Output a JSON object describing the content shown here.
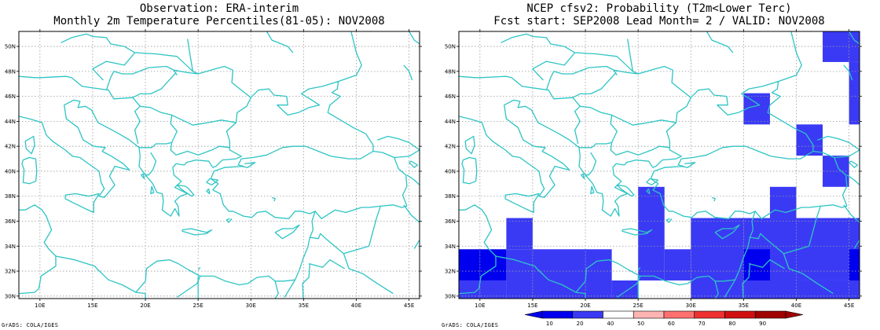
{
  "left_panel": {
    "title_line1": "Observation: ERA-interim",
    "title_line2": "Monthly 2m Temperature Percentiles(81-05): NOV2008"
  },
  "right_panel": {
    "title_line1": "NCEP cfsv2: Probability (T2m<Lower Terc)",
    "title_line2": "Fcst start: SEP2008  Lead Month= 2 / VALID: NOV2008"
  },
  "credit": "GrADS: COLA/IGES",
  "axes": {
    "lon_labels": [
      "10E",
      "15E",
      "20E",
      "25E",
      "30E",
      "35E",
      "40E",
      "45E"
    ],
    "lat_labels": [
      "30N",
      "32N",
      "34N",
      "36N",
      "38N",
      "40N",
      "42N",
      "44N",
      "46N",
      "48N",
      "50N"
    ]
  },
  "colors": {
    "coast": "#2ec4c4",
    "grid": "#999999",
    "prob_10": "#0000ee",
    "prob_20": "#3a3af5"
  },
  "chart_data": {
    "type": "heatmap",
    "lon_range": [
      8,
      46
    ],
    "lat_range": [
      29.8,
      51.2
    ],
    "cell_size_deg": 2.5,
    "cells": [
      {
        "lon0": 7.5,
        "lon1": 10,
        "lat0": 31.25,
        "lat1": 33.75,
        "v": 10
      },
      {
        "lon0": 10,
        "lon1": 12.5,
        "lat0": 31.25,
        "lat1": 33.75,
        "v": 10
      },
      {
        "lon0": 7.5,
        "lon1": 10,
        "lat0": 28.75,
        "lat1": 31.25,
        "v": 20
      },
      {
        "lon0": 10,
        "lon1": 12.5,
        "lat0": 28.75,
        "lat1": 31.25,
        "v": 20
      },
      {
        "lon0": 12.5,
        "lon1": 15,
        "lat0": 28.75,
        "lat1": 33.75,
        "v": 20
      },
      {
        "lon0": 12.5,
        "lon1": 15,
        "lat0": 33.75,
        "lat1": 36.25,
        "v": 20
      },
      {
        "lon0": 15,
        "lon1": 20,
        "lat0": 28.75,
        "lat1": 33.75,
        "v": 20
      },
      {
        "lon0": 20,
        "lon1": 22.5,
        "lat0": 28.75,
        "lat1": 33.75,
        "v": 20
      },
      {
        "lon0": 22.5,
        "lon1": 25,
        "lat0": 28.75,
        "lat1": 31.25,
        "v": 20
      },
      {
        "lon0": 25,
        "lon1": 27.5,
        "lat0": 31.25,
        "lat1": 38.75,
        "v": 20
      },
      {
        "lon0": 27.5,
        "lon1": 30,
        "lat0": 31.25,
        "lat1": 33.75,
        "v": 20
      },
      {
        "lon0": 30,
        "lon1": 35,
        "lat0": 28.75,
        "lat1": 36.25,
        "v": 20
      },
      {
        "lon0": 35,
        "lon1": 40,
        "lat0": 28.75,
        "lat1": 36.25,
        "v": 20
      },
      {
        "lon0": 37.5,
        "lon1": 40,
        "lat0": 36.25,
        "lat1": 38.75,
        "v": 20
      },
      {
        "lon0": 40,
        "lon1": 46,
        "lat0": 31.25,
        "lat1": 36.25,
        "v": 20
      },
      {
        "lon0": 35,
        "lon1": 37.5,
        "lat0": 31.25,
        "lat1": 33.75,
        "v": 10
      },
      {
        "lon0": 45,
        "lon1": 46,
        "lat0": 31.25,
        "lat1": 33.75,
        "v": 10
      },
      {
        "lon0": 40,
        "lon1": 42.5,
        "lat0": 28.75,
        "lat1": 31.25,
        "v": 20
      },
      {
        "lon0": 42.5,
        "lon1": 46,
        "lat0": 28.75,
        "lat1": 31.25,
        "v": 20
      },
      {
        "lon0": 35,
        "lon1": 37.5,
        "lat0": 43.75,
        "lat1": 46.25,
        "v": 20
      },
      {
        "lon0": 40,
        "lon1": 42.5,
        "lat0": 41.25,
        "lat1": 43.75,
        "v": 20
      },
      {
        "lon0": 42.5,
        "lon1": 45,
        "lat0": 38.75,
        "lat1": 41.25,
        "v": 20
      },
      {
        "lon0": 42.5,
        "lon1": 46,
        "lat0": 48.75,
        "lat1": 51.2,
        "v": 20
      },
      {
        "lon0": 45,
        "lon1": 46,
        "lat0": 43.75,
        "lat1": 48.75,
        "v": 20
      }
    ],
    "colorbar": {
      "levels": [
        "10",
        "20",
        "40",
        "50",
        "60",
        "70",
        "80",
        "90"
      ],
      "colors": [
        "#0000ee",
        "#3a3af5",
        "#ffffff",
        "#ffb4b4",
        "#ff7070",
        "#ee3030",
        "#d01010",
        "#a00000"
      ]
    }
  }
}
